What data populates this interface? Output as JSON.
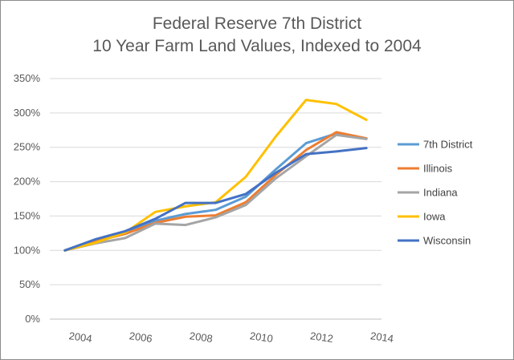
{
  "chart_data": {
    "type": "line",
    "title": "Federal Reserve 7th District",
    "subtitle": "10 Year Farm Land Values, Indexed to 2004",
    "xlabel": "",
    "ylabel": "",
    "x": [
      2003.5,
      2004.5,
      2005.5,
      2006.5,
      2007.5,
      2008.5,
      2009.5,
      2010.5,
      2011.5,
      2012.5,
      2013.5
    ],
    "xlim": [
      2003,
      2014
    ],
    "xticks": [
      "2004",
      "2006",
      "2008",
      "2010",
      "2012",
      "2014"
    ],
    "xtick_values": [
      2004,
      2006,
      2008,
      2010,
      2012,
      2014
    ],
    "ylim": [
      0,
      350
    ],
    "yticks": [
      "0%",
      "50%",
      "100%",
      "150%",
      "200%",
      "250%",
      "300%",
      "350%"
    ],
    "ytick_values": [
      0,
      50,
      100,
      150,
      200,
      250,
      300,
      350
    ],
    "grid": true,
    "legend_position": "right",
    "series": [
      {
        "name": "7th District",
        "color": "#5B9BD5",
        "values": [
          100,
          114,
          125,
          143,
          153,
          159,
          178,
          218,
          256,
          270,
          263
        ]
      },
      {
        "name": "Illinois",
        "color": "#ED7D31",
        "values": [
          100,
          113,
          124,
          140,
          149,
          151,
          170,
          210,
          246,
          272,
          263
        ]
      },
      {
        "name": "Indiana",
        "color": "#A5A5A5",
        "values": [
          100,
          110,
          118,
          139,
          137,
          148,
          166,
          205,
          237,
          268,
          262
        ]
      },
      {
        "name": "Iowa",
        "color": "#FFC000",
        "values": [
          100,
          111,
          126,
          156,
          164,
          170,
          207,
          266,
          319,
          313,
          290
        ]
      },
      {
        "name": "Wisconsin",
        "color": "#4472C4",
        "values": [
          100,
          116,
          128,
          146,
          169,
          169,
          182,
          213,
          240,
          244,
          249
        ]
      }
    ]
  }
}
